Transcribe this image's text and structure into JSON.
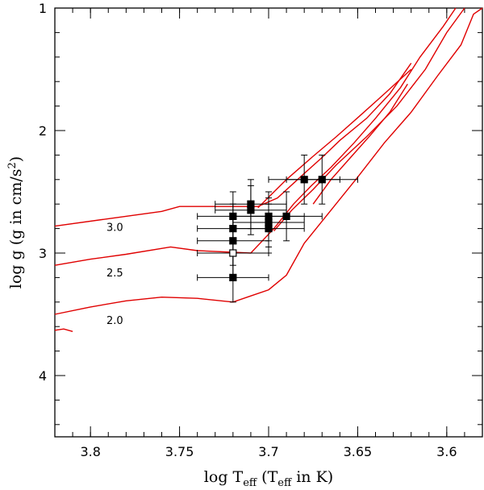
{
  "chart_data": {
    "type": "scatter",
    "x_axis": {
      "title_prefix": "log T",
      "title_sub": "eff",
      "title_mid": " (T",
      "title_sub2": "eff",
      "title_suffix": " in K)",
      "lim": [
        3.82,
        3.58
      ],
      "ticks": [
        3.8,
        3.75,
        3.7,
        3.65,
        3.6
      ],
      "tick_labels": [
        "3.8",
        "3.75",
        "3.7",
        "3.65",
        "3.6"
      ]
    },
    "y_axis": {
      "title_prefix": "log g (g in cm/s",
      "title_sup": "2",
      "title_suffix": ")",
      "lim": [
        1,
        4.5
      ],
      "ticks": [
        1,
        2,
        3,
        4
      ],
      "tick_labels": [
        "1",
        "2",
        "3",
        "4"
      ]
    },
    "stars": [
      {
        "x": 3.72,
        "y": 2.7,
        "xerr": 0.02,
        "yerr": 0.2,
        "filled": true
      },
      {
        "x": 3.72,
        "y": 2.8,
        "xerr": 0.02,
        "yerr": 0.2,
        "filled": true
      },
      {
        "x": 3.72,
        "y": 2.9,
        "xerr": 0.02,
        "yerr": 0.2,
        "filled": true
      },
      {
        "x": 3.72,
        "y": 3.0,
        "xerr": 0.02,
        "yerr": 0.2,
        "filled": false
      },
      {
        "x": 3.72,
        "y": 3.2,
        "xerr": 0.02,
        "yerr": 0.2,
        "filled": true
      },
      {
        "x": 3.71,
        "y": 2.6,
        "xerr": 0.02,
        "yerr": 0.2,
        "filled": true
      },
      {
        "x": 3.71,
        "y": 2.65,
        "xerr": 0.02,
        "yerr": 0.2,
        "filled": true
      },
      {
        "x": 3.7,
        "y": 2.7,
        "xerr": 0.02,
        "yerr": 0.2,
        "filled": true
      },
      {
        "x": 3.7,
        "y": 2.75,
        "xerr": 0.02,
        "yerr": 0.2,
        "filled": true
      },
      {
        "x": 3.7,
        "y": 2.8,
        "xerr": 0.02,
        "yerr": 0.2,
        "filled": true
      },
      {
        "x": 3.69,
        "y": 2.7,
        "xerr": 0.02,
        "yerr": 0.2,
        "filled": true
      },
      {
        "x": 3.68,
        "y": 2.4,
        "xerr": 0.02,
        "yerr": 0.2,
        "filled": true
      },
      {
        "x": 3.67,
        "y": 2.4,
        "xerr": 0.02,
        "yerr": 0.2,
        "filled": true
      }
    ],
    "tracks": [
      {
        "mass": "3.0",
        "label_at": [
          3.791,
          2.82
        ],
        "points": [
          [
            3.82,
            2.78
          ],
          [
            3.79,
            2.72
          ],
          [
            3.76,
            2.66
          ],
          [
            3.75,
            2.62
          ],
          [
            3.72,
            2.62
          ],
          [
            3.706,
            2.62
          ],
          [
            3.695,
            2.55
          ],
          [
            3.68,
            2.35
          ],
          [
            3.67,
            2.22
          ],
          [
            3.66,
            2.08
          ],
          [
            3.645,
            1.9
          ],
          [
            3.632,
            1.7
          ],
          [
            3.62,
            1.45
          ]
        ]
      },
      {
        "mass": "2.5",
        "label_at": [
          3.791,
          3.19
        ],
        "points": [
          [
            3.82,
            3.1
          ],
          [
            3.8,
            3.05
          ],
          [
            3.78,
            3.01
          ],
          [
            3.755,
            2.95
          ],
          [
            3.74,
            2.98
          ],
          [
            3.71,
            3.0
          ],
          [
            3.697,
            2.8
          ],
          [
            3.686,
            2.6
          ],
          [
            3.676,
            2.45
          ],
          [
            3.665,
            2.3
          ],
          [
            3.652,
            2.1
          ],
          [
            3.64,
            1.9
          ],
          [
            3.626,
            1.65
          ],
          [
            3.615,
            1.4
          ],
          [
            3.602,
            1.15
          ],
          [
            3.595,
            1.0
          ]
        ]
      },
      {
        "mass": "2.0",
        "label_at": [
          3.791,
          3.58
        ],
        "points": [
          [
            3.82,
            3.5
          ],
          [
            3.8,
            3.44
          ],
          [
            3.78,
            3.39
          ],
          [
            3.76,
            3.36
          ],
          [
            3.74,
            3.37
          ],
          [
            3.72,
            3.4
          ],
          [
            3.71,
            3.35
          ],
          [
            3.7,
            3.3
          ],
          [
            3.69,
            3.18
          ],
          [
            3.68,
            2.92
          ],
          [
            3.665,
            2.65
          ],
          [
            3.65,
            2.38
          ],
          [
            3.635,
            2.1
          ],
          [
            3.62,
            1.85
          ],
          [
            3.605,
            1.55
          ],
          [
            3.592,
            1.3
          ],
          [
            3.585,
            1.05
          ],
          [
            3.58,
            1.0
          ]
        ]
      },
      {
        "mass": "",
        "label_at": null,
        "points": [
          [
            3.706,
            2.63
          ],
          [
            3.69,
            2.4
          ],
          [
            3.675,
            2.21
          ],
          [
            3.662,
            2.05
          ],
          [
            3.648,
            1.87
          ],
          [
            3.635,
            1.7
          ],
          [
            3.62,
            1.5
          ]
        ]
      },
      {
        "mass": "",
        "label_at": null,
        "points": [
          [
            3.675,
            2.6
          ],
          [
            3.665,
            2.4
          ],
          [
            3.654,
            2.22
          ],
          [
            3.643,
            2.04
          ],
          [
            3.632,
            1.85
          ],
          [
            3.622,
            1.62
          ]
        ]
      },
      {
        "mass": "",
        "label_at": null,
        "points": [
          [
            3.697,
            2.82
          ],
          [
            3.687,
            2.65
          ],
          [
            3.675,
            2.48
          ],
          [
            3.662,
            2.28
          ],
          [
            3.645,
            2.05
          ],
          [
            3.628,
            1.8
          ],
          [
            3.612,
            1.5
          ],
          [
            3.6,
            1.2
          ],
          [
            3.59,
            1.0
          ]
        ]
      },
      {
        "mass": "",
        "label_at": null,
        "points": [
          [
            3.82,
            3.63
          ],
          [
            3.815,
            3.62
          ],
          [
            3.81,
            3.64
          ]
        ]
      }
    ]
  }
}
